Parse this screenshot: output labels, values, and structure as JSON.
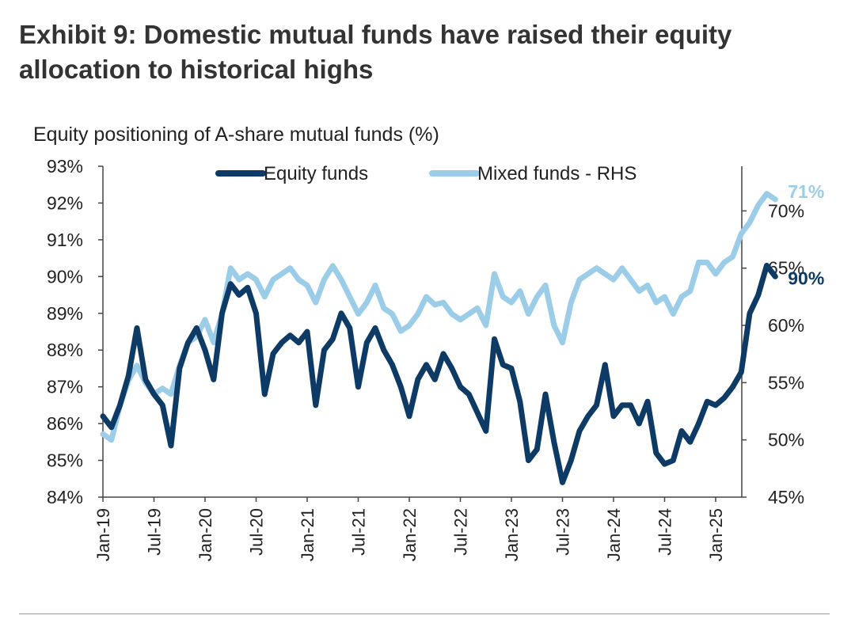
{
  "title": "Exhibit 9: Domestic mutual funds have raised their equity allocation to historical highs",
  "subtitle": "Equity positioning of A-share mutual funds (%)",
  "colors": {
    "equity": "#0d3b66",
    "mixed": "#9ccde8",
    "axis": "#444444"
  },
  "chart_data": {
    "type": "line",
    "title": "Equity positioning of A-share mutual funds (%)",
    "legend_position": "top",
    "grid": false,
    "x_ticks": [
      "Jan-19",
      "Jul-19",
      "Jan-20",
      "Jul-20",
      "Jan-21",
      "Jul-21",
      "Jan-22",
      "Jul-22",
      "Jan-23",
      "Jul-23",
      "Jan-24",
      "Jul-24",
      "Jan-25"
    ],
    "y_left": {
      "ticks": [
        "84%",
        "85%",
        "86%",
        "87%",
        "88%",
        "89%",
        "90%",
        "91%",
        "92%",
        "93%"
      ],
      "range": [
        84,
        93
      ]
    },
    "y_right": {
      "ticks": [
        "45%",
        "50%",
        "55%",
        "60%",
        "65%",
        "70%"
      ],
      "range": [
        45,
        73.9
      ]
    },
    "series": [
      {
        "name": "Equity funds",
        "axis": "left",
        "end_label": "90%",
        "points": [
          [
            "2019-01",
            86.2
          ],
          [
            "2019-02",
            85.9
          ],
          [
            "2019-03",
            86.5
          ],
          [
            "2019-04",
            87.3
          ],
          [
            "2019-05",
            88.6
          ],
          [
            "2019-06",
            87.2
          ],
          [
            "2019-07",
            86.8
          ],
          [
            "2019-08",
            86.5
          ],
          [
            "2019-09",
            85.4
          ],
          [
            "2019-10",
            87.5
          ],
          [
            "2019-11",
            88.2
          ],
          [
            "2019-12",
            88.6
          ],
          [
            "2020-01",
            88.0
          ],
          [
            "2020-02",
            87.2
          ],
          [
            "2020-03",
            89.0
          ],
          [
            "2020-04",
            89.8
          ],
          [
            "2020-05",
            89.5
          ],
          [
            "2020-06",
            89.7
          ],
          [
            "2020-07",
            89.0
          ],
          [
            "2020-08",
            86.8
          ],
          [
            "2020-09",
            87.9
          ],
          [
            "2020-10",
            88.2
          ],
          [
            "2020-11",
            88.4
          ],
          [
            "2020-12",
            88.2
          ],
          [
            "2021-01",
            88.5
          ],
          [
            "2021-02",
            86.5
          ],
          [
            "2021-03",
            88.0
          ],
          [
            "2021-04",
            88.3
          ],
          [
            "2021-05",
            89.0
          ],
          [
            "2021-06",
            88.6
          ],
          [
            "2021-07",
            87.0
          ],
          [
            "2021-08",
            88.2
          ],
          [
            "2021-09",
            88.6
          ],
          [
            "2021-10",
            88.0
          ],
          [
            "2021-11",
            87.6
          ],
          [
            "2021-12",
            87.0
          ],
          [
            "2022-01",
            86.2
          ],
          [
            "2022-02",
            87.2
          ],
          [
            "2022-03",
            87.6
          ],
          [
            "2022-04",
            87.2
          ],
          [
            "2022-05",
            87.9
          ],
          [
            "2022-06",
            87.5
          ],
          [
            "2022-07",
            87.0
          ],
          [
            "2022-08",
            86.8
          ],
          [
            "2022-09",
            86.3
          ],
          [
            "2022-10",
            85.8
          ],
          [
            "2022-11",
            88.3
          ],
          [
            "2022-12",
            87.6
          ],
          [
            "2023-01",
            87.5
          ],
          [
            "2023-02",
            86.6
          ],
          [
            "2023-03",
            85.0
          ],
          [
            "2023-04",
            85.3
          ],
          [
            "2023-05",
            86.8
          ],
          [
            "2023-06",
            85.5
          ],
          [
            "2023-07",
            84.4
          ],
          [
            "2023-08",
            85.0
          ],
          [
            "2023-09",
            85.8
          ],
          [
            "2023-10",
            86.2
          ],
          [
            "2023-11",
            86.5
          ],
          [
            "2023-12",
            87.6
          ],
          [
            "2024-01",
            86.2
          ],
          [
            "2024-02",
            86.5
          ],
          [
            "2024-03",
            86.5
          ],
          [
            "2024-04",
            86.0
          ],
          [
            "2024-05",
            86.6
          ],
          [
            "2024-06",
            85.2
          ],
          [
            "2024-07",
            84.9
          ],
          [
            "2024-08",
            85.0
          ],
          [
            "2024-09",
            85.8
          ],
          [
            "2024-10",
            85.5
          ],
          [
            "2024-11",
            86.0
          ],
          [
            "2024-12",
            86.6
          ],
          [
            "2025-01",
            86.5
          ],
          [
            "2025-02",
            86.7
          ],
          [
            "2025-03",
            87.0
          ],
          [
            "2025-04",
            87.4
          ],
          [
            "2025-05",
            89.0
          ],
          [
            "2025-06",
            89.5
          ],
          [
            "2025-07",
            90.3
          ],
          [
            "2025-08",
            90.0
          ]
        ]
      },
      {
        "name": "Mixed funds - RHS",
        "axis": "right",
        "end_label": "71%",
        "points": [
          [
            "2019-01",
            50.5
          ],
          [
            "2019-02",
            50.0
          ],
          [
            "2019-03",
            53.0
          ],
          [
            "2019-04",
            55.2
          ],
          [
            "2019-05",
            56.5
          ],
          [
            "2019-06",
            55.0
          ],
          [
            "2019-07",
            54.0
          ],
          [
            "2019-08",
            54.5
          ],
          [
            "2019-09",
            54.0
          ],
          [
            "2019-10",
            56.5
          ],
          [
            "2019-11",
            58.5
          ],
          [
            "2019-12",
            59.0
          ],
          [
            "2020-01",
            60.5
          ],
          [
            "2020-02",
            58.5
          ],
          [
            "2020-03",
            61.0
          ],
          [
            "2020-04",
            65.0
          ],
          [
            "2020-05",
            64.0
          ],
          [
            "2020-06",
            64.5
          ],
          [
            "2020-07",
            64.0
          ],
          [
            "2020-08",
            62.5
          ],
          [
            "2020-09",
            64.0
          ],
          [
            "2020-10",
            64.5
          ],
          [
            "2020-11",
            65.0
          ],
          [
            "2020-12",
            64.0
          ],
          [
            "2021-01",
            63.5
          ],
          [
            "2021-02",
            62.0
          ],
          [
            "2021-03",
            64.0
          ],
          [
            "2021-04",
            65.2
          ],
          [
            "2021-05",
            64.0
          ],
          [
            "2021-06",
            62.5
          ],
          [
            "2021-07",
            61.0
          ],
          [
            "2021-08",
            62.0
          ],
          [
            "2021-09",
            63.5
          ],
          [
            "2021-10",
            61.5
          ],
          [
            "2021-11",
            61.0
          ],
          [
            "2021-12",
            59.5
          ],
          [
            "2022-01",
            60.0
          ],
          [
            "2022-02",
            61.0
          ],
          [
            "2022-03",
            62.5
          ],
          [
            "2022-04",
            61.8
          ],
          [
            "2022-05",
            62.0
          ],
          [
            "2022-06",
            61.0
          ],
          [
            "2022-07",
            60.5
          ],
          [
            "2022-08",
            61.0
          ],
          [
            "2022-09",
            61.5
          ],
          [
            "2022-10",
            60.0
          ],
          [
            "2022-11",
            64.5
          ],
          [
            "2022-12",
            62.5
          ],
          [
            "2023-01",
            62.0
          ],
          [
            "2023-02",
            63.0
          ],
          [
            "2023-03",
            61.0
          ],
          [
            "2023-04",
            62.5
          ],
          [
            "2023-05",
            63.5
          ],
          [
            "2023-06",
            60.0
          ],
          [
            "2023-07",
            58.5
          ],
          [
            "2023-08",
            62.0
          ],
          [
            "2023-09",
            64.0
          ],
          [
            "2023-10",
            64.5
          ],
          [
            "2023-11",
            65.0
          ],
          [
            "2023-12",
            64.5
          ],
          [
            "2024-01",
            64.0
          ],
          [
            "2024-02",
            65.0
          ],
          [
            "2024-03",
            64.0
          ],
          [
            "2024-04",
            63.0
          ],
          [
            "2024-05",
            63.5
          ],
          [
            "2024-06",
            62.0
          ],
          [
            "2024-07",
            62.5
          ],
          [
            "2024-08",
            61.0
          ],
          [
            "2024-09",
            62.5
          ],
          [
            "2024-10",
            63.0
          ],
          [
            "2024-11",
            65.5
          ],
          [
            "2024-12",
            65.5
          ],
          [
            "2025-01",
            64.5
          ],
          [
            "2025-02",
            65.5
          ],
          [
            "2025-03",
            66.0
          ],
          [
            "2025-04",
            68.0
          ],
          [
            "2025-05",
            69.0
          ],
          [
            "2025-06",
            70.5
          ],
          [
            "2025-07",
            71.5
          ],
          [
            "2025-08",
            71.0
          ]
        ]
      }
    ]
  }
}
